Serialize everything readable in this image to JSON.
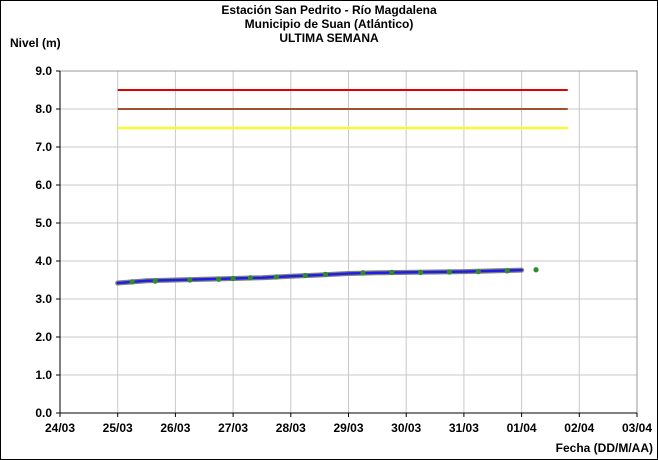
{
  "chart_data": {
    "type": "line",
    "title_lines": [
      "Estación San Pedrito - Río Magdalena",
      "Municipio de Suan (Atlántico)",
      "ULTIMA SEMANA"
    ],
    "ylabel": "Nivel (m)",
    "xlabel": "Fecha (DD/M/AA)",
    "ylim": [
      0,
      9
    ],
    "yticks": [
      "0.0",
      "1.0",
      "2.0",
      "3.0",
      "4.0",
      "5.0",
      "6.0",
      "7.0",
      "8.0",
      "9.0"
    ],
    "xlim": [
      0,
      10
    ],
    "xticks": [
      "24/03",
      "25/03",
      "26/03",
      "27/03",
      "28/03",
      "29/03",
      "30/03",
      "31/03",
      "01/04",
      "02/04",
      "03/04"
    ],
    "grid": true,
    "legend": "none",
    "thresholds": [
      {
        "value": 8.5,
        "color": "#e00000",
        "x_start": 1,
        "x_end": 8.8
      },
      {
        "value": 8.0,
        "color": "#a0522d",
        "x_start": 1,
        "x_end": 8.8
      },
      {
        "value": 7.5,
        "color": "#ffff00",
        "x_start": 1,
        "x_end": 8.8
      }
    ],
    "series": [
      {
        "color": "#1f1fe0",
        "x": [
          1.0,
          1.25,
          1.5,
          2.0,
          2.5,
          3.0,
          3.5,
          4.0,
          4.5,
          5.0,
          5.5,
          6.0,
          6.5,
          7.0,
          7.5,
          8.0
        ],
        "values": [
          3.42,
          3.45,
          3.48,
          3.5,
          3.52,
          3.54,
          3.56,
          3.6,
          3.63,
          3.67,
          3.69,
          3.7,
          3.71,
          3.72,
          3.74,
          3.76
        ]
      },
      {
        "color": "#2e8b2e",
        "x": [
          1.25,
          1.65,
          2.25,
          2.75,
          3.0,
          3.3,
          3.75,
          4.25,
          4.6,
          5.25,
          5.75,
          6.25,
          6.75,
          7.25,
          7.75,
          8.25
        ],
        "values": [
          3.45,
          3.47,
          3.5,
          3.52,
          3.54,
          3.56,
          3.58,
          3.62,
          3.65,
          3.69,
          3.7,
          3.7,
          3.71,
          3.72,
          3.74,
          3.77
        ]
      }
    ]
  }
}
